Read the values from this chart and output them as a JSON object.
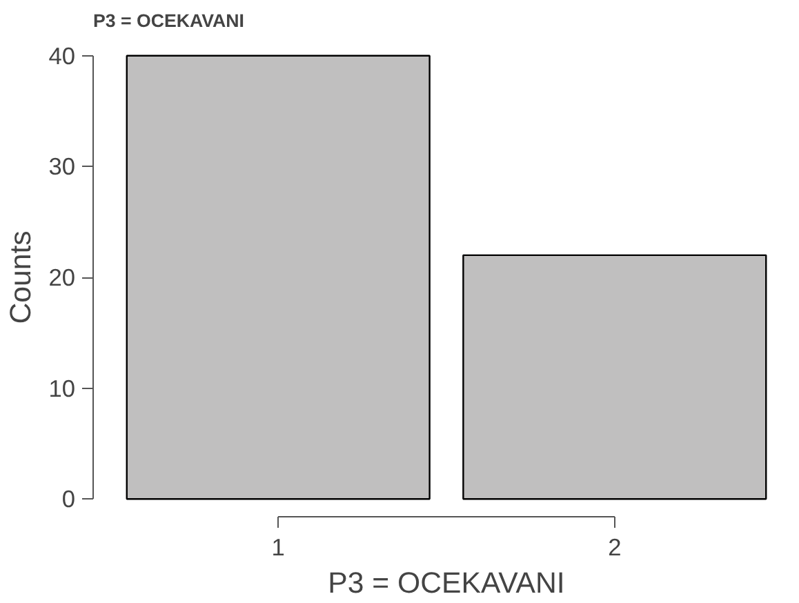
{
  "chart_data": {
    "type": "bar",
    "title": "P3 = OCEKAVANI",
    "xlabel": "P3 = OCEKAVANI",
    "ylabel": "Counts",
    "categories": [
      "1",
      "2"
    ],
    "values": [
      40,
      22
    ],
    "color": "#c0bfbf",
    "ylim": [
      0,
      40
    ],
    "yticks": [
      0,
      10,
      20,
      30,
      40
    ],
    "grid": false
  }
}
